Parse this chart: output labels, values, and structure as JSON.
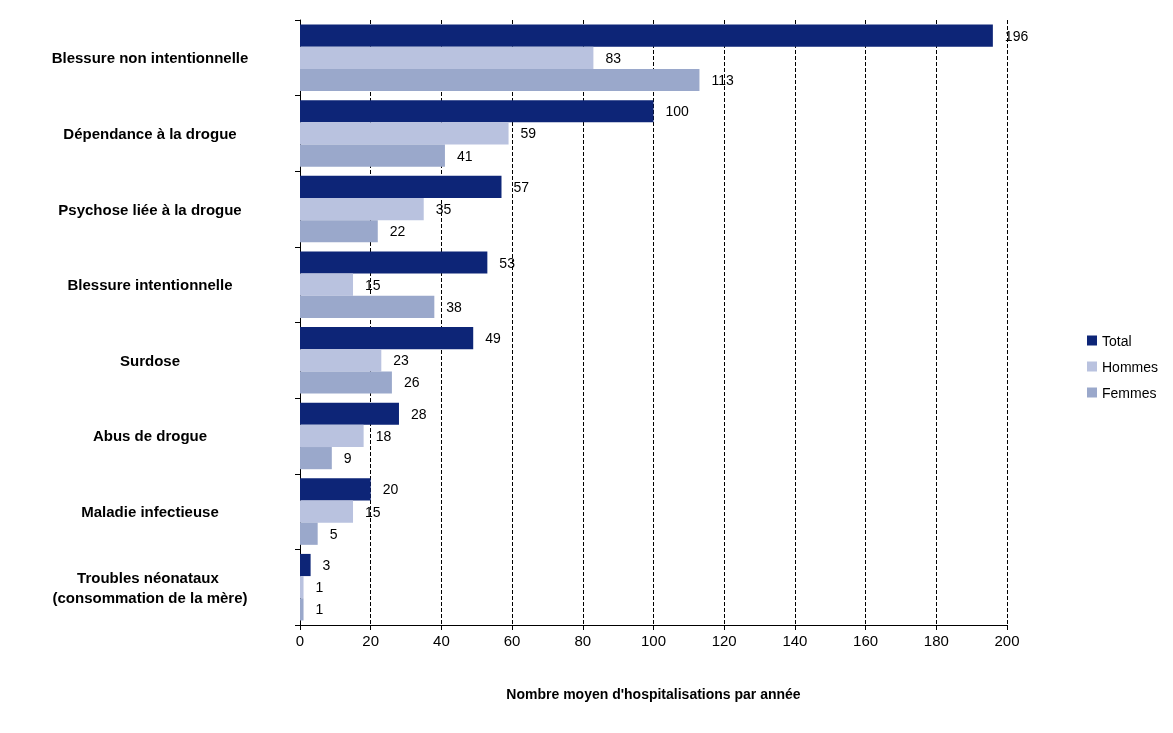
{
  "chart_data": {
    "type": "bar",
    "orientation": "horizontal",
    "xlabel": "Nombre moyen d'hospitalisations par année",
    "categories": [
      "Blessure non intentionnelle",
      "Dépendance à la drogue",
      "Psychose liée à la drogue",
      "Blessure intentionnelle",
      "Surdose",
      "Abus de drogue",
      "Maladie infectieuse",
      "Troubles néonataux (consommation de la mère)"
    ],
    "series": [
      {
        "name": "Total",
        "color": "#0d2577",
        "values": [
          196,
          100,
          57,
          53,
          49,
          28,
          20,
          3
        ]
      },
      {
        "name": "Hommes",
        "color": "#b9c2df",
        "values": [
          83,
          59,
          35,
          15,
          23,
          18,
          15,
          1
        ]
      },
      {
        "name": "Femmes",
        "color": "#9aa8cb",
        "values": [
          113,
          41,
          22,
          38,
          26,
          9,
          5,
          1
        ]
      }
    ],
    "xlim": [
      0,
      200
    ],
    "xticks": [
      0,
      20,
      40,
      60,
      80,
      100,
      120,
      140,
      160,
      180,
      200
    ],
    "grid": "x",
    "legend": "right",
    "data_labels": true
  }
}
